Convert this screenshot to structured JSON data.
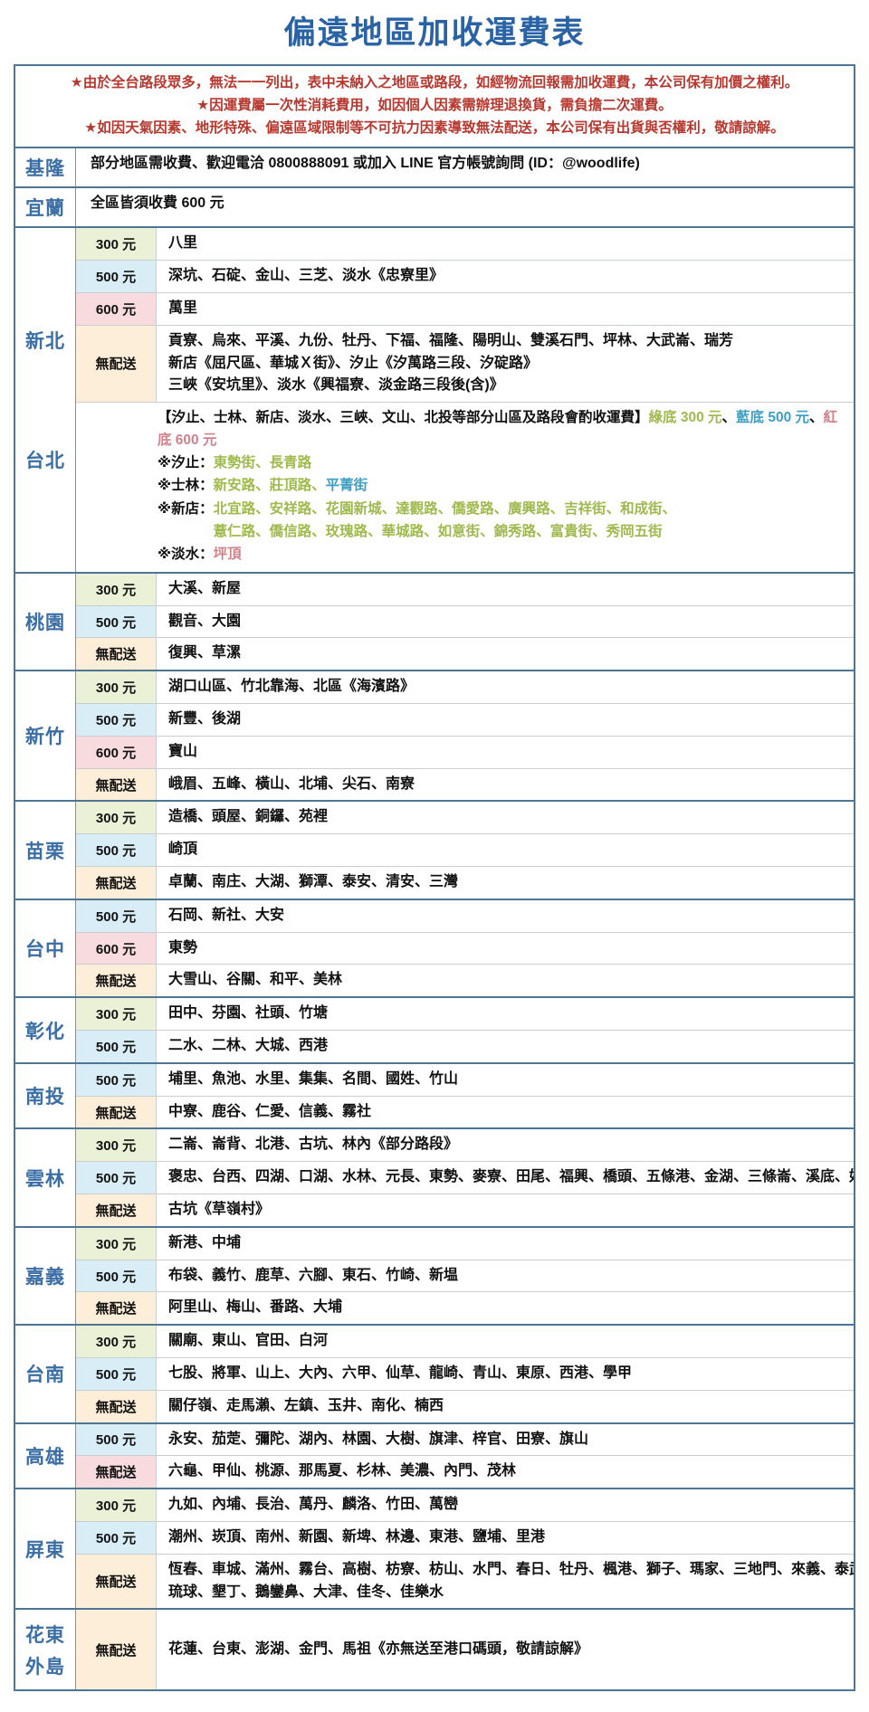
{
  "title": "偏遠地區加收運費表",
  "notes": [
    "★由於全台路段眾多，無法一一列出，表中未納入之地區或路段，如經物流回報需加收運費，本公司保有加價之權利。",
    "★因運費屬一次性消耗費用，如因個人因素需辦理退換貨，需負擔二次運費。",
    "★如因天氣因素、地形特殊、偏遠區域限制等不可抗力因素導致無法配送，本公司保有出貨與否權利，敬請諒解。"
  ],
  "palette": {
    "title_blue": "#2a63a5",
    "region_blue": "#3a6ea5",
    "notice_red": "#b5392f",
    "border_dark": "#4e7694",
    "border_light": "#c9ced1",
    "tiers": {
      "t300": "#ebf1d7",
      "t500": "#d9edf6",
      "t600": "#f7dbde",
      "none": "#fdeeda",
      "nonePink": "#f7dbde"
    },
    "note": {
      "black": "#111111",
      "green": "#a0b94e",
      "blue": "#3e9fc4",
      "red": "#d0828b"
    }
  },
  "fee_labels": {
    "t300": "300 元",
    "t500": "500 元",
    "t600": "600 元",
    "none": "無配送"
  },
  "mountain_note": {
    "header": "【汐止、士林、新店、淡水、三峽、文山、北投等部分山區及路段會酌收運費】",
    "legend": [
      {
        "text": "綠底 300 元",
        "color": "green"
      },
      {
        "text": "、",
        "color": "black"
      },
      {
        "text": "藍底 500 元",
        "color": "blue"
      },
      {
        "text": "、",
        "color": "black"
      },
      {
        "text": "紅底 600 元",
        "color": "red"
      }
    ],
    "entries": [
      {
        "prefix": "※汐止：",
        "lines": [
          [
            {
              "text": "東勢街、長青路",
              "color": "green"
            }
          ]
        ]
      },
      {
        "prefix": "※士林：",
        "lines": [
          [
            {
              "text": "新安路、莊頂路、",
              "color": "green"
            },
            {
              "text": "平菁街",
              "color": "blue"
            }
          ]
        ]
      },
      {
        "prefix": "※新店：",
        "lines": [
          [
            {
              "text": "北宜路、安祥路、花園新城、達觀路、僑愛路、廣興路、吉祥街、和成街、",
              "color": "green"
            }
          ],
          [
            {
              "text": "薏仁路、僑信路、玫瑰路、華城路、如意街、錦秀路、富貴街、秀岡五街",
              "color": "green"
            }
          ]
        ]
      },
      {
        "prefix": "※淡水：",
        "lines": [
          [
            {
              "text": "坪頂",
              "color": "red"
            }
          ]
        ]
      }
    ]
  },
  "regions": [
    {
      "id": "keelung",
      "label": [
        "基隆"
      ],
      "rows": [
        {
          "type": "plain",
          "lines": [
            "部分地區需收費、歡迎電洽 0800888091 或加入 LINE 官方帳號詢問 (ID：@woodlife)"
          ]
        }
      ]
    },
    {
      "id": "yilan",
      "label": [
        "宜蘭"
      ],
      "rows": [
        {
          "type": "plain",
          "lines": [
            "全區皆須收費 600 元"
          ]
        }
      ]
    },
    {
      "id": "xinbei-taipei",
      "label": [
        "新北",
        "台北"
      ],
      "rows": [
        {
          "type": "t300",
          "lines": [
            "八里"
          ]
        },
        {
          "type": "t500",
          "lines": [
            "深坑、石碇、金山、三芝、淡水《忠寮里》"
          ]
        },
        {
          "type": "t600",
          "lines": [
            "萬里"
          ]
        },
        {
          "type": "none",
          "lines": [
            "貢寮、烏來、平溪、九份、牡丹、下福、福隆、陽明山、雙溪石門、坪林、大武崙、瑞芳",
            "新店《屈尺區、華城Ｘ街》、汐止《汐萬路三段、汐碇路》",
            "三峽《安坑里》、淡水《興福寮、淡金路三段後(含)》"
          ]
        },
        {
          "type": "note"
        }
      ]
    },
    {
      "id": "taoyuan",
      "label": [
        "桃園"
      ],
      "rows": [
        {
          "type": "t300",
          "lines": [
            "大溪、新屋"
          ]
        },
        {
          "type": "t500",
          "lines": [
            "觀音、大園"
          ]
        },
        {
          "type": "none",
          "lines": [
            "復興、草漯"
          ]
        }
      ]
    },
    {
      "id": "hsinchu",
      "label": [
        "新竹"
      ],
      "rows": [
        {
          "type": "t300",
          "lines": [
            "湖口山區、竹北靠海、北區《海濱路》"
          ]
        },
        {
          "type": "t500",
          "lines": [
            "新豐、後湖"
          ]
        },
        {
          "type": "t600",
          "lines": [
            "寶山"
          ]
        },
        {
          "type": "none",
          "lines": [
            "峨眉、五峰、橫山、北埔、尖石、南寮"
          ]
        }
      ]
    },
    {
      "id": "miaoli",
      "label": [
        "苗栗"
      ],
      "rows": [
        {
          "type": "t300",
          "lines": [
            "造橋、頭屋、銅鑼、苑裡"
          ]
        },
        {
          "type": "t500",
          "lines": [
            "崎頂"
          ]
        },
        {
          "type": "none",
          "lines": [
            "卓蘭、南庄、大湖、獅潭、泰安、清安、三灣"
          ]
        }
      ]
    },
    {
      "id": "taichung",
      "label": [
        "台中"
      ],
      "rows": [
        {
          "type": "t500",
          "lines": [
            "石岡、新社、大安"
          ]
        },
        {
          "type": "t600",
          "lines": [
            "東勢"
          ]
        },
        {
          "type": "none",
          "lines": [
            "大雪山、谷關、和平、美林"
          ]
        }
      ]
    },
    {
      "id": "changhua",
      "label": [
        "彰化"
      ],
      "rows": [
        {
          "type": "t300",
          "lines": [
            "田中、芬園、社頭、竹塘"
          ]
        },
        {
          "type": "t500",
          "lines": [
            "二水、二林、大城、西港"
          ]
        }
      ]
    },
    {
      "id": "nantou",
      "label": [
        "南投"
      ],
      "rows": [
        {
          "type": "t500",
          "lines": [
            "埔里、魚池、水里、集集、名間、國姓、竹山"
          ]
        },
        {
          "type": "none",
          "lines": [
            "中寮、鹿谷、仁愛、信義、霧社"
          ]
        }
      ]
    },
    {
      "id": "yunlin",
      "label": [
        "雲林"
      ],
      "rows": [
        {
          "type": "t300",
          "lines": [
            "二崙、崙背、北港、古坑、林內《部分路段》"
          ]
        },
        {
          "type": "t500",
          "lines": [
            "褒忠、台西、四湖、口湖、水林、元長、東勢、麥寮、田尾、福興、橋頭、五條港、金湖、三條崙、溪底、好收"
          ]
        },
        {
          "type": "none",
          "lines": [
            "古坑《草嶺村》"
          ]
        }
      ]
    },
    {
      "id": "chiayi",
      "label": [
        "嘉義"
      ],
      "rows": [
        {
          "type": "t300",
          "lines": [
            "新港、中埔"
          ]
        },
        {
          "type": "t500",
          "lines": [
            "布袋、義竹、鹿草、六腳、東石、竹崎、新塭"
          ]
        },
        {
          "type": "none",
          "lines": [
            "阿里山、梅山、番路、大埔"
          ]
        }
      ]
    },
    {
      "id": "tainan",
      "label": [
        "台南"
      ],
      "rows": [
        {
          "type": "t300",
          "lines": [
            "關廟、東山、官田、白河"
          ]
        },
        {
          "type": "t500",
          "lines": [
            "七股、將軍、山上、大內、六甲、仙草、龍崎、青山、東原、西港、學甲"
          ]
        },
        {
          "type": "none",
          "lines": [
            "關仔嶺、走馬瀨、左鎮、玉井、南化、楠西"
          ]
        }
      ]
    },
    {
      "id": "kaohsiung",
      "label": [
        "高雄"
      ],
      "rows": [
        {
          "type": "t500",
          "lines": [
            "永安、茄萣、彌陀、湖內、林園、大樹、旗津、梓官、田寮、旗山"
          ]
        },
        {
          "type": "nonePink",
          "lines": [
            "六龜、甲仙、桃源、那馬夏、杉林、美濃、內門、茂林"
          ]
        }
      ]
    },
    {
      "id": "pingtung",
      "label": [
        "屏東"
      ],
      "rows": [
        {
          "type": "t300",
          "lines": [
            "九如、內埔、長治、萬丹、麟洛、竹田、萬巒"
          ]
        },
        {
          "type": "t500",
          "lines": [
            "潮州、崁頂、南州、新園、新埤、林邊、東港、鹽埔、里港"
          ]
        },
        {
          "type": "none",
          "lines": [
            "恆春、車城、滿州、霧台、高樹、枋寮、枋山、水門、春日、牡丹、楓港、獅子、瑪家、三地門、來義、泰武、",
            "琉球、墾丁、鵝鑾鼻、大津、佳冬、佳樂水"
          ]
        }
      ]
    },
    {
      "id": "huadong-islands",
      "label": [
        "花東",
        "外島"
      ],
      "rows": [
        {
          "type": "none",
          "tall": true,
          "lines": [
            "花蓮、台東、澎湖、金門、馬祖《亦無送至港口碼頭，敬請諒解》"
          ]
        }
      ]
    }
  ]
}
